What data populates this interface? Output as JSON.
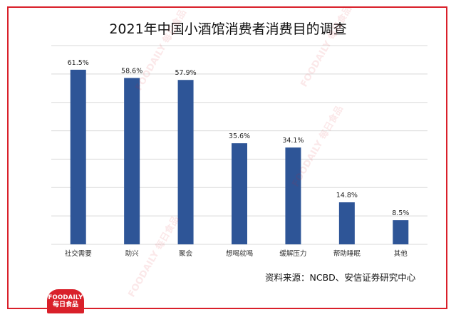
{
  "title": "2021年中国小酒馆消费者消费目的调查",
  "source": "资料来源：NCBD、安信证券研究中心",
  "logo": {
    "en": "FOODAILY",
    "cn": "每日食品"
  },
  "colors": {
    "bar": "#2e5597",
    "frame": "#d9202a"
  },
  "chart_data": {
    "type": "bar",
    "title": "2021年中国小酒馆消费者消费目的调查",
    "categories": [
      "社交需要",
      "助兴",
      "聚会",
      "想喝就喝",
      "缓解压力",
      "帮助睡眠",
      "其他"
    ],
    "values": [
      61.5,
      58.6,
      57.9,
      35.6,
      34.1,
      14.8,
      8.5
    ],
    "value_labels": [
      "61.5%",
      "58.6%",
      "57.9%",
      "35.6%",
      "34.1%",
      "14.8%",
      "8.5%"
    ],
    "unit": "%",
    "ylim": [
      0,
      70
    ],
    "grid": true,
    "legend": "none",
    "xlabel": "",
    "ylabel": ""
  }
}
